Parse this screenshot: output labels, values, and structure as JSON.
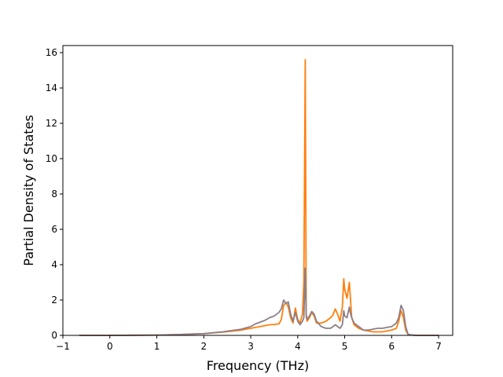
{
  "chart_data": {
    "type": "line",
    "title": "",
    "xlabel": "Frequency (THz)",
    "ylabel": "Partial Density of States",
    "xlim": [
      -1.0,
      7.3
    ],
    "ylim": [
      0,
      16.4
    ],
    "xticks": [
      -1,
      0,
      1,
      2,
      3,
      4,
      5,
      6,
      7
    ],
    "yticks": [
      0,
      2,
      4,
      6,
      8,
      10,
      12,
      14,
      16
    ],
    "grid": false,
    "legend": "none",
    "series": [
      {
        "color": "#ff7f0e",
        "x": [
          -0.65,
          0.0,
          0.5,
          1.0,
          1.5,
          2.0,
          2.4,
          2.8,
          3.0,
          3.1,
          3.2,
          3.3,
          3.4,
          3.5,
          3.6,
          3.65,
          3.7,
          3.75,
          3.8,
          3.85,
          3.9,
          3.95,
          4.0,
          4.05,
          4.1,
          4.13,
          4.16,
          4.18,
          4.2,
          4.25,
          4.3,
          4.35,
          4.4,
          4.5,
          4.6,
          4.7,
          4.75,
          4.8,
          4.85,
          4.9,
          4.95,
          4.98,
          5.0,
          5.05,
          5.1,
          5.12,
          5.15,
          5.2,
          5.3,
          5.4,
          5.5,
          5.6,
          5.7,
          5.8,
          5.9,
          6.0,
          6.1,
          6.15,
          6.2,
          6.25,
          6.3,
          6.35,
          6.5,
          7.0
        ],
        "y": [
          0,
          0,
          0.01,
          0.02,
          0.05,
          0.1,
          0.18,
          0.3,
          0.4,
          0.45,
          0.5,
          0.55,
          0.6,
          0.62,
          0.65,
          0.9,
          1.7,
          1.85,
          1.6,
          1.0,
          0.7,
          1.55,
          0.9,
          0.7,
          1.2,
          3.0,
          15.6,
          1.1,
          0.8,
          1.0,
          1.3,
          1.1,
          0.7,
          0.7,
          0.8,
          1.0,
          1.15,
          1.5,
          1.2,
          0.8,
          1.6,
          3.2,
          2.6,
          2.1,
          3.0,
          2.2,
          1.0,
          0.6,
          0.4,
          0.3,
          0.25,
          0.2,
          0.2,
          0.2,
          0.25,
          0.3,
          0.4,
          0.8,
          1.4,
          1.0,
          0.3,
          0.05,
          0,
          0
        ]
      },
      {
        "color": "#8c7e87",
        "x": [
          -0.65,
          0.0,
          0.5,
          1.0,
          1.5,
          2.0,
          2.4,
          2.8,
          3.0,
          3.1,
          3.2,
          3.3,
          3.4,
          3.5,
          3.6,
          3.65,
          3.7,
          3.75,
          3.8,
          3.85,
          3.9,
          3.95,
          4.0,
          4.05,
          4.1,
          4.13,
          4.16,
          4.18,
          4.2,
          4.25,
          4.3,
          4.35,
          4.4,
          4.5,
          4.6,
          4.7,
          4.75,
          4.8,
          4.85,
          4.9,
          4.95,
          4.98,
          5.0,
          5.05,
          5.1,
          5.12,
          5.15,
          5.2,
          5.3,
          5.4,
          5.5,
          5.6,
          5.7,
          5.8,
          5.9,
          6.0,
          6.1,
          6.15,
          6.2,
          6.25,
          6.3,
          6.35,
          6.5,
          7.0
        ],
        "y": [
          0,
          0,
          0.01,
          0.02,
          0.05,
          0.1,
          0.2,
          0.35,
          0.5,
          0.65,
          0.75,
          0.85,
          1.0,
          1.1,
          1.3,
          1.5,
          2.0,
          1.8,
          1.9,
          1.2,
          0.8,
          1.3,
          0.8,
          0.6,
          0.8,
          1.0,
          3.8,
          1.2,
          0.9,
          1.1,
          1.35,
          1.2,
          0.8,
          0.5,
          0.4,
          0.4,
          0.5,
          0.6,
          0.5,
          0.4,
          0.6,
          1.4,
          1.1,
          1.0,
          1.6,
          1.3,
          1.0,
          0.7,
          0.5,
          0.3,
          0.3,
          0.35,
          0.4,
          0.4,
          0.45,
          0.5,
          0.7,
          1.0,
          1.7,
          1.4,
          0.5,
          0.05,
          0,
          0
        ]
      }
    ]
  }
}
